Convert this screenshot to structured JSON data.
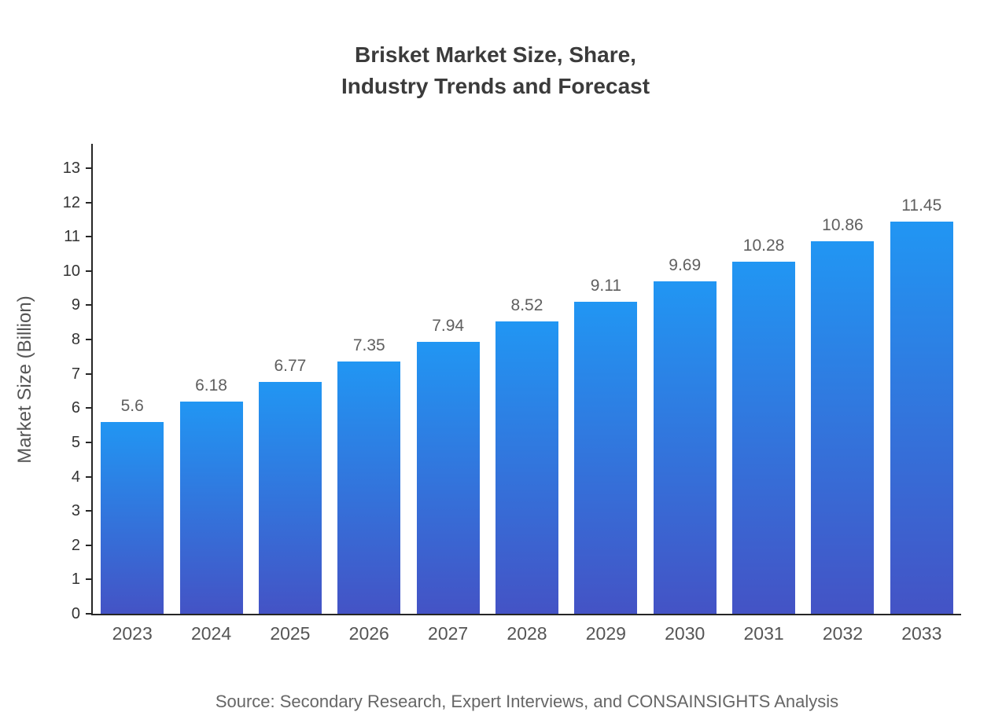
{
  "chart_data": {
    "type": "bar",
    "title_lines": [
      "Brisket Market Size, Share,",
      "Industry Trends and Forecast"
    ],
    "categories": [
      "2023",
      "2024",
      "2025",
      "2026",
      "2027",
      "2028",
      "2029",
      "2030",
      "2031",
      "2032",
      "2033"
    ],
    "values": [
      5.6,
      6.18,
      6.77,
      7.35,
      7.94,
      8.52,
      9.11,
      9.69,
      10.28,
      10.86,
      11.45
    ],
    "value_labels": [
      "5.6",
      "6.18",
      "6.77",
      "7.35",
      "7.94",
      "8.52",
      "9.11",
      "9.69",
      "10.28",
      "10.86",
      "11.45"
    ],
    "xlabel": "",
    "ylabel": "Market Size (Billion)",
    "ylim": [
      0,
      13.71
    ],
    "yticks": [
      0,
      1,
      2,
      3,
      4,
      5,
      6,
      7,
      8,
      9,
      10,
      11,
      12,
      13
    ],
    "grid": false,
    "legend": false,
    "bar_color_top": "#2196f3",
    "bar_color_bottom": "#4453c5",
    "axis_color": "#262626",
    "source": "Source: Secondary Research, Expert Interviews, and CONSAINSIGHTS Analysis"
  }
}
